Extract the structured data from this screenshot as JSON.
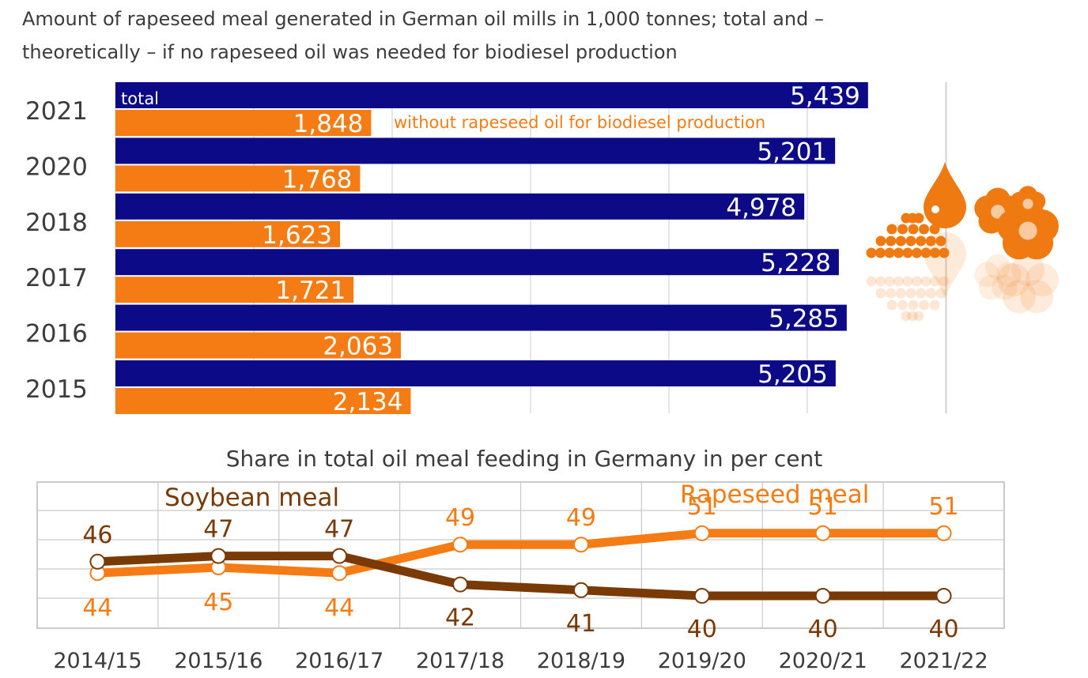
{
  "title_lines": [
    "Amount of rapeseed meal generated in German oil mills in 1,000 tonnes; total and –",
    "theoretically – if no rapeseed oil was needed for biodiesel production"
  ],
  "colors": {
    "total": "#0c0a87",
    "without": "#f57c14",
    "soybean": "#7a3a06",
    "rapeseed": "#f57c14",
    "grid": "#d4d4d4",
    "text": "#3c3c3c"
  },
  "chart_data": [
    {
      "type": "bar",
      "orientation": "horizontal",
      "title": "Amount of rapeseed meal generated in German oil mills in 1,000 tonnes; total and – theoretically – if no rapeseed oil was needed for biodiesel production",
      "categories": [
        "2021",
        "2020",
        "2018",
        "2017",
        "2016",
        "2015"
      ],
      "series": [
        {
          "name": "total",
          "values": [
            5439,
            5201,
            4978,
            5228,
            5285,
            5205
          ],
          "labels": [
            "5,439",
            "5,201",
            "4,978",
            "5,228",
            "5,285",
            "5,205"
          ]
        },
        {
          "name": "without rapeseed oil for biodiesel production",
          "values": [
            1848,
            1768,
            1623,
            1721,
            2063,
            2134
          ],
          "labels": [
            "1,848",
            "1,768",
            "1,623",
            "1,721",
            "2,063",
            "2,134"
          ]
        }
      ],
      "xlim": [
        0,
        6000
      ],
      "grid": true,
      "legend": "inline"
    },
    {
      "type": "line",
      "title": "Share in total oil meal feeding in Germany in per cent",
      "categories": [
        "2014/15",
        "2015/16",
        "2016/17",
        "2017/18",
        "2018/19",
        "2019/20",
        "2020/21",
        "2021/22"
      ],
      "series": [
        {
          "name": "Soybean meal",
          "values": [
            46,
            47,
            47,
            42,
            41,
            40,
            40,
            40
          ]
        },
        {
          "name": "Rapeseed meal",
          "values": [
            44,
            45,
            44,
            49,
            49,
            51,
            51,
            51
          ]
        }
      ],
      "grid": true,
      "legend": "inline"
    }
  ],
  "decoration": [
    "rapeseed-pile-icon",
    "oil-drop-icon",
    "rapeseed-flower-icon"
  ]
}
